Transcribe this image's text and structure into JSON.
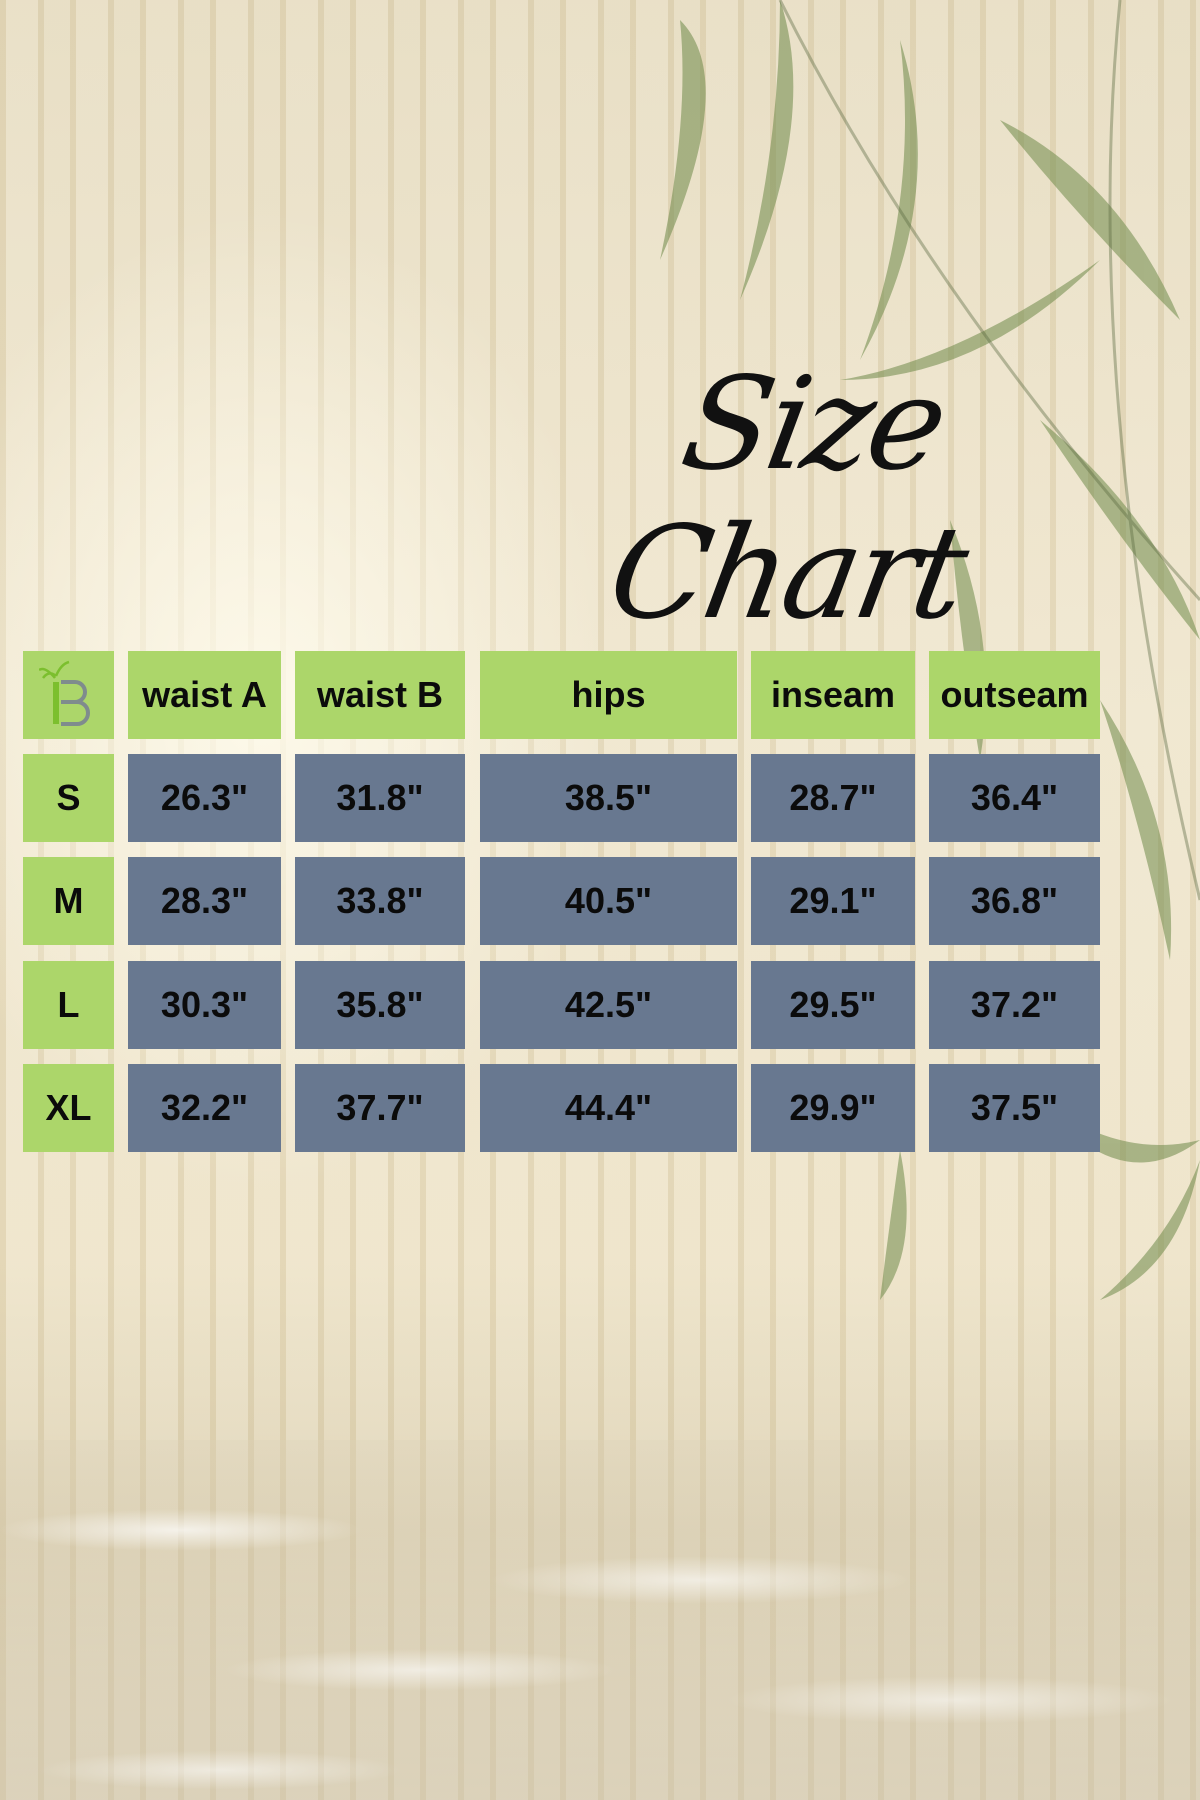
{
  "title": "Size Chart",
  "logo": {
    "text": "iB",
    "icon": "bamboo-b-logo"
  },
  "colors": {
    "header_bg": "#acd66a",
    "value_bg": "#687890",
    "text": "#0b0b0b"
  },
  "table": {
    "columns": [
      "waist A",
      "waist B",
      "hips",
      "inseam",
      "outseam"
    ],
    "rows": [
      {
        "size": "S",
        "values": [
          "26.3\"",
          "31.8\"",
          "38.5\"",
          "28.7\"",
          "36.4\""
        ]
      },
      {
        "size": "M",
        "values": [
          "28.3\"",
          "33.8\"",
          "40.5\"",
          "29.1\"",
          "36.8\""
        ]
      },
      {
        "size": "L",
        "values": [
          "30.3\"",
          "35.8\"",
          "42.5\"",
          "29.5\"",
          "37.2\""
        ]
      },
      {
        "size": "XL",
        "values": [
          "32.2\"",
          "37.7\"",
          "44.4\"",
          "29.9\"",
          "37.5\""
        ]
      }
    ]
  }
}
